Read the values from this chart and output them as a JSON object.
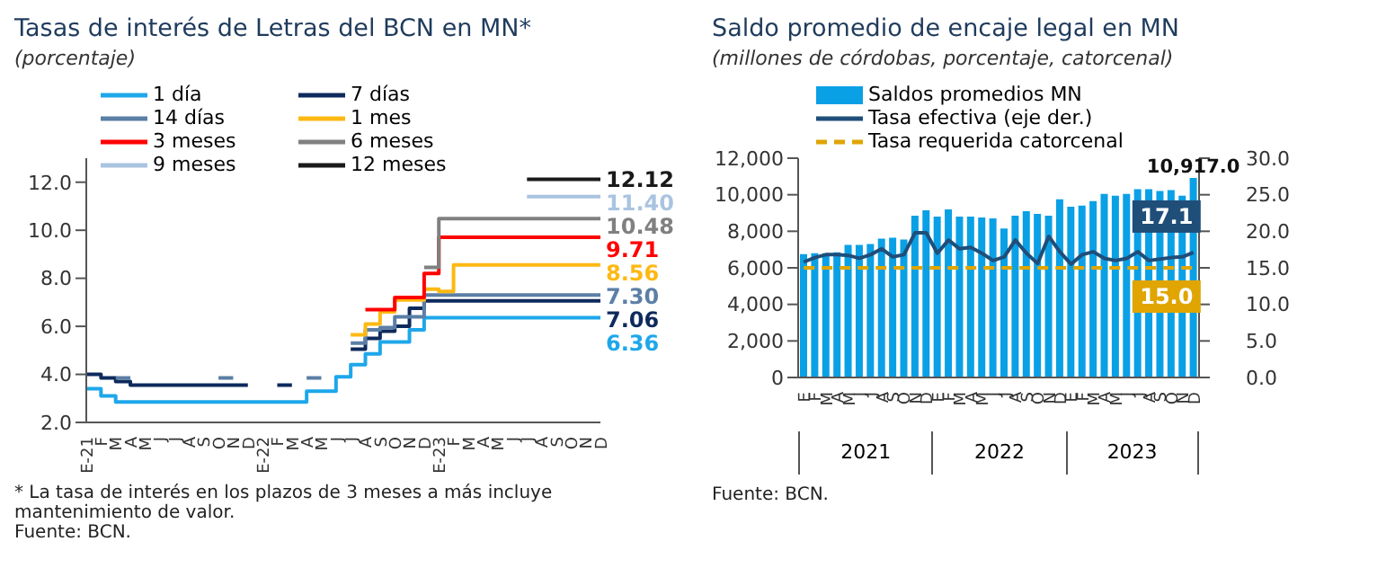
{
  "chart_data": [
    {
      "type": "step",
      "title": "Tasas de interés de Letras del BCN en MN*",
      "subtitle": "(porcentaje)",
      "categories": [
        "E-21",
        "F",
        "M",
        "A",
        "M",
        "J",
        "J",
        "A",
        "S",
        "O",
        "N",
        "D",
        "E-22",
        "F",
        "M",
        "A",
        "M",
        "J",
        "J",
        "A",
        "S",
        "O",
        "N",
        "D",
        "E-23",
        "F",
        "M",
        "A",
        "M",
        "J",
        "J",
        "A",
        "S",
        "O",
        "N",
        "D"
      ],
      "series": [
        {
          "name": "1 día",
          "color": "#1ea7ea",
          "values": [
            3.4,
            3.1,
            2.85,
            2.85,
            2.85,
            2.85,
            2.85,
            2.85,
            2.85,
            2.85,
            2.85,
            2.85,
            2.85,
            2.85,
            2.85,
            3.3,
            3.3,
            3.9,
            4.4,
            4.85,
            5.35,
            5.35,
            5.85,
            6.36,
            6.36,
            6.36,
            6.36,
            6.36,
            6.36,
            6.36,
            6.36,
            6.36,
            6.36,
            6.36,
            6.36,
            6.36
          ],
          "value_labels": [
            null,
            null,
            null,
            null,
            null,
            null,
            null,
            null,
            null,
            null,
            null,
            null,
            null,
            null,
            null,
            null,
            null,
            null,
            null,
            null,
            null,
            null,
            null,
            null,
            null,
            null,
            null,
            null,
            null,
            null,
            null,
            null,
            null,
            null,
            null,
            "6.36"
          ]
        },
        {
          "name": "7 días",
          "color": "#0d2a5c",
          "values": [
            4.0,
            3.85,
            3.7,
            3.55,
            3.55,
            3.55,
            3.55,
            3.55,
            3.55,
            3.55,
            3.55,
            3.55,
            null,
            3.55,
            3.55,
            null,
            null,
            null,
            5.05,
            5.5,
            5.8,
            6.0,
            6.75,
            7.06,
            7.06,
            7.06,
            7.06,
            7.06,
            7.06,
            7.06,
            7.06,
            7.06,
            7.06,
            7.06,
            7.06,
            7.06
          ],
          "value_labels": [
            null,
            null,
            null,
            null,
            null,
            null,
            null,
            null,
            null,
            null,
            null,
            null,
            null,
            null,
            null,
            null,
            null,
            null,
            null,
            null,
            null,
            null,
            null,
            null,
            null,
            null,
            null,
            null,
            null,
            null,
            null,
            null,
            null,
            null,
            null,
            "7.06"
          ]
        },
        {
          "name": "14 días",
          "color": "#5b7fa6",
          "values": [
            null,
            null,
            3.85,
            3.85,
            null,
            null,
            null,
            null,
            null,
            3.85,
            3.85,
            null,
            null,
            null,
            null,
            3.85,
            3.85,
            null,
            5.3,
            5.85,
            5.95,
            6.4,
            6.4,
            7.3,
            7.3,
            7.3,
            7.3,
            7.3,
            7.3,
            7.3,
            7.3,
            7.3,
            7.3,
            7.3,
            7.3,
            7.3
          ],
          "value_labels": [
            null,
            null,
            null,
            null,
            null,
            null,
            null,
            null,
            null,
            null,
            null,
            null,
            null,
            null,
            null,
            null,
            null,
            null,
            null,
            null,
            null,
            null,
            null,
            null,
            null,
            null,
            null,
            null,
            null,
            null,
            null,
            null,
            null,
            null,
            null,
            "7.30"
          ]
        },
        {
          "name": "1 mes",
          "color": "#fdb913",
          "values": [
            null,
            null,
            null,
            null,
            null,
            null,
            null,
            null,
            null,
            null,
            null,
            null,
            null,
            null,
            null,
            null,
            null,
            null,
            5.65,
            6.1,
            6.6,
            7.1,
            7.1,
            7.55,
            7.45,
            8.56,
            8.56,
            8.56,
            8.56,
            8.56,
            8.56,
            8.56,
            8.56,
            8.56,
            8.56,
            8.56
          ],
          "value_labels": [
            null,
            null,
            null,
            null,
            null,
            null,
            null,
            null,
            null,
            null,
            null,
            null,
            null,
            null,
            null,
            null,
            null,
            null,
            null,
            null,
            null,
            null,
            null,
            null,
            null,
            null,
            null,
            null,
            null,
            null,
            null,
            null,
            null,
            null,
            null,
            "8.56"
          ]
        },
        {
          "name": "3 meses",
          "color": "#ff0000",
          "values": [
            null,
            null,
            null,
            null,
            null,
            null,
            null,
            null,
            null,
            null,
            null,
            null,
            null,
            null,
            null,
            null,
            null,
            null,
            null,
            6.7,
            6.7,
            7.2,
            7.2,
            8.2,
            9.71,
            9.71,
            9.71,
            9.71,
            9.71,
            9.71,
            9.71,
            9.71,
            9.71,
            9.71,
            9.71,
            9.71
          ],
          "value_labels": [
            null,
            null,
            null,
            null,
            null,
            null,
            null,
            null,
            null,
            null,
            null,
            null,
            null,
            null,
            null,
            null,
            null,
            null,
            null,
            null,
            null,
            null,
            null,
            null,
            null,
            null,
            null,
            null,
            null,
            null,
            null,
            null,
            null,
            null,
            null,
            "9.71"
          ]
        },
        {
          "name": "6 meses",
          "color": "#808080",
          "values": [
            null,
            null,
            null,
            null,
            null,
            null,
            null,
            null,
            null,
            null,
            null,
            null,
            null,
            null,
            null,
            null,
            null,
            null,
            null,
            null,
            null,
            null,
            null,
            8.45,
            10.48,
            10.48,
            10.48,
            10.48,
            10.48,
            10.48,
            10.48,
            10.48,
            10.48,
            10.48,
            10.48,
            10.48
          ],
          "value_labels": [
            null,
            null,
            null,
            null,
            null,
            null,
            null,
            null,
            null,
            null,
            null,
            null,
            null,
            null,
            null,
            null,
            null,
            null,
            null,
            null,
            null,
            null,
            null,
            null,
            null,
            null,
            null,
            null,
            null,
            null,
            null,
            null,
            null,
            null,
            null,
            "10.48"
          ]
        },
        {
          "name": "9 meses",
          "color": "#a9c4e0",
          "values": [
            null,
            null,
            null,
            null,
            null,
            null,
            null,
            null,
            null,
            null,
            null,
            null,
            null,
            null,
            null,
            null,
            null,
            null,
            null,
            null,
            null,
            null,
            null,
            null,
            null,
            null,
            null,
            null,
            null,
            null,
            11.4,
            11.4,
            11.4,
            11.4,
            11.4,
            11.4
          ],
          "value_labels": [
            null,
            null,
            null,
            null,
            null,
            null,
            null,
            null,
            null,
            null,
            null,
            null,
            null,
            null,
            null,
            null,
            null,
            null,
            null,
            null,
            null,
            null,
            null,
            null,
            null,
            null,
            null,
            null,
            null,
            null,
            null,
            null,
            null,
            null,
            null,
            "11.40"
          ]
        },
        {
          "name": "12 meses",
          "color": "#1a1a1a",
          "values": [
            null,
            null,
            null,
            null,
            null,
            null,
            null,
            null,
            null,
            null,
            null,
            null,
            null,
            null,
            null,
            null,
            null,
            null,
            null,
            null,
            null,
            null,
            null,
            null,
            null,
            null,
            null,
            null,
            null,
            null,
            12.12,
            12.12,
            12.12,
            12.12,
            12.12,
            12.12
          ],
          "value_labels": [
            null,
            null,
            null,
            null,
            null,
            null,
            null,
            null,
            null,
            null,
            null,
            null,
            null,
            null,
            null,
            null,
            null,
            null,
            null,
            null,
            null,
            null,
            null,
            null,
            null,
            null,
            null,
            null,
            null,
            null,
            null,
            null,
            null,
            null,
            null,
            "12.12"
          ]
        }
      ],
      "ylim": [
        2,
        13
      ],
      "yticks": [
        {
          "value": 2,
          "label": "2.0"
        },
        {
          "value": 4,
          "label": "4.0"
        },
        {
          "value": 6,
          "label": "6.0"
        },
        {
          "value": 8,
          "label": "8.0"
        },
        {
          "value": 10,
          "label": "10.0"
        },
        {
          "value": 12,
          "label": "12.0"
        }
      ],
      "legend": "top left",
      "grid": false,
      "annotations": [
        "* La tasa de interés en los plazos de 3 meses a más incluye mantenimiento de valor.",
        "Fuente: BCN."
      ]
    },
    {
      "type": "bar",
      "title": "Saldo promedio de encaje legal en MN",
      "subtitle": "(millones de córdobas, porcentaje, catorcenal)",
      "categories": [
        "E",
        "F",
        "M",
        "A",
        "M",
        "J",
        "J",
        "A",
        "S",
        "O",
        "N",
        "D",
        "E",
        "F",
        "M",
        "A",
        "M",
        "J",
        "J",
        "A",
        "S",
        "O",
        "N",
        "D",
        "E",
        "F",
        "M",
        "A",
        "M",
        "J",
        "J",
        "A",
        "S",
        "O",
        "N",
        "D"
      ],
      "series": [
        {
          "name": "Saldos promedios MN",
          "type": "bar",
          "color": "#0aa0e6",
          "values": [
            6750,
            6800,
            6800,
            6850,
            7250,
            7250,
            7300,
            7600,
            7650,
            7550,
            8850,
            9150,
            8800,
            9200,
            8800,
            8800,
            8750,
            8700,
            8150,
            8850,
            9100,
            8950,
            8850,
            9750,
            9350,
            9400,
            9650,
            10050,
            9950,
            10050,
            10300,
            10300,
            10200,
            10250,
            9950,
            10917.0
          ],
          "value_labels": [
            null,
            null,
            null,
            null,
            null,
            null,
            null,
            null,
            null,
            null,
            null,
            null,
            null,
            null,
            null,
            null,
            null,
            null,
            null,
            null,
            null,
            null,
            null,
            null,
            null,
            null,
            null,
            null,
            null,
            null,
            null,
            null,
            null,
            null,
            null,
            "10,917.0"
          ]
        },
        {
          "name": "Tasa efectiva (eje der.)",
          "type": "line",
          "axis": "y2",
          "color": "#1f4e79",
          "line_style": "solid",
          "values": [
            15.8,
            16.4,
            16.8,
            16.8,
            16.7,
            16.3,
            16.8,
            17.6,
            16.5,
            16.8,
            19.8,
            19.8,
            17.0,
            18.8,
            17.6,
            17.8,
            17.0,
            16.0,
            16.5,
            18.8,
            17.0,
            15.6,
            19.3,
            17.2,
            15.5,
            16.8,
            17.2,
            16.3,
            16.0,
            16.3,
            17.2,
            16.0,
            16.2,
            16.4,
            16.5,
            17.1
          ],
          "value_labels": [
            null,
            null,
            null,
            null,
            null,
            null,
            null,
            null,
            null,
            null,
            null,
            null,
            null,
            null,
            null,
            null,
            null,
            null,
            null,
            null,
            null,
            null,
            null,
            null,
            null,
            null,
            null,
            null,
            null,
            null,
            null,
            null,
            null,
            null,
            null,
            "17.1"
          ]
        },
        {
          "name": "Tasa requerida catorcenal",
          "type": "line",
          "axis": "y2",
          "color": "#e0a500",
          "line_style": "dashed",
          "values": [
            15,
            15,
            15,
            15,
            15,
            15,
            15,
            15,
            15,
            15,
            15,
            15,
            15,
            15,
            15,
            15,
            15,
            15,
            15,
            15,
            15,
            15,
            15,
            15,
            15,
            15,
            15,
            15,
            15,
            15,
            15,
            15,
            15,
            15,
            15,
            15.0
          ],
          "value_labels": [
            null,
            null,
            null,
            null,
            null,
            null,
            null,
            null,
            null,
            null,
            null,
            null,
            null,
            null,
            null,
            null,
            null,
            null,
            null,
            null,
            null,
            null,
            null,
            null,
            null,
            null,
            null,
            null,
            null,
            null,
            null,
            null,
            null,
            null,
            null,
            "15.0"
          ]
        }
      ],
      "ylim": [
        0,
        12000
      ],
      "yticks": [
        {
          "value": 0,
          "label": "0"
        },
        {
          "value": 2000,
          "label": "2,000"
        },
        {
          "value": 4000,
          "label": "4,000"
        },
        {
          "value": 6000,
          "label": "6,000"
        },
        {
          "value": 8000,
          "label": "8,000"
        },
        {
          "value": 10000,
          "label": "10,000"
        },
        {
          "value": 12000,
          "label": "12,000"
        }
      ],
      "y2lim": [
        0,
        30
      ],
      "y2ticks": [
        {
          "value": 0,
          "label": "0.0"
        },
        {
          "value": 5,
          "label": "5.0"
        },
        {
          "value": 10,
          "label": "10.0"
        },
        {
          "value": 15,
          "label": "15.0"
        },
        {
          "value": 20,
          "label": "20.0"
        },
        {
          "value": 25,
          "label": "25.0"
        },
        {
          "value": 30,
          "label": "30.0"
        }
      ],
      "legend": "top left",
      "grid": false,
      "annotations": [
        "2021",
        "2022",
        "2023",
        "Fuente: BCN."
      ]
    }
  ]
}
